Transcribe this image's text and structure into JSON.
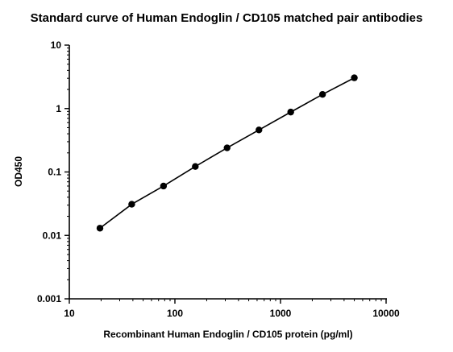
{
  "chart_data": {
    "type": "line",
    "title": "Standard curve of Human Endoglin / CD105 matched pair antibodies",
    "xlabel": "Recombinant Human Endoglin / CD105 protein (pg/ml)",
    "ylabel": "OD450",
    "x_scale": "log",
    "y_scale": "log",
    "xlim": [
      10,
      10000
    ],
    "ylim": [
      0.001,
      10
    ],
    "x_ticks": [
      "10",
      "100",
      "1000",
      "10000"
    ],
    "y_ticks": [
      "0.001",
      "0.01",
      "0.1",
      "1",
      "10"
    ],
    "grid": false,
    "legend": "none",
    "series": [
      {
        "x": [
          19.5,
          39,
          78,
          156,
          312,
          625,
          1250,
          2500,
          5000
        ],
        "y": [
          0.013,
          0.031,
          0.06,
          0.122,
          0.24,
          0.46,
          0.88,
          1.67,
          3.05
        ]
      }
    ]
  }
}
